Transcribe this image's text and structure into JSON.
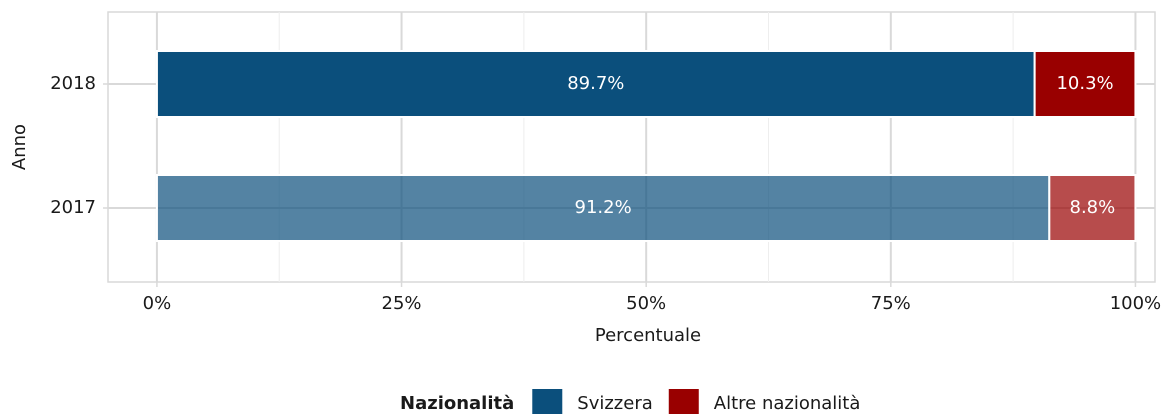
{
  "chart_data": {
    "type": "stacked_barh",
    "categories": [
      "2017",
      "2018"
    ],
    "category_alpha": [
      0.7,
      1
    ],
    "series": [
      {
        "name": "Svizzera",
        "color": "#0b4f7c",
        "values": [
          91.2,
          89.7
        ],
        "value_labels": [
          "91.2%",
          "89.7%"
        ]
      },
      {
        "name": "Altre nazionalità",
        "color": "#990000",
        "values": [
          8.8,
          10.3
        ],
        "value_labels": [
          "8.8%",
          "10.3%"
        ]
      }
    ],
    "xlim": [
      -5,
      102
    ],
    "xticks": [
      {
        "value": 0,
        "label": "0%"
      },
      {
        "value": 25,
        "label": "25%"
      },
      {
        "value": 50,
        "label": "50%"
      },
      {
        "value": 75,
        "label": "75%"
      },
      {
        "value": 100,
        "label": "100%"
      }
    ],
    "xminor_ticks": [
      12.5,
      37.5,
      62.5,
      87.5
    ],
    "xlabel": "Percentuale",
    "ylabel": "Anno",
    "legend_title": "Nazionalità",
    "legend_position": "bottom",
    "grid": true
  }
}
